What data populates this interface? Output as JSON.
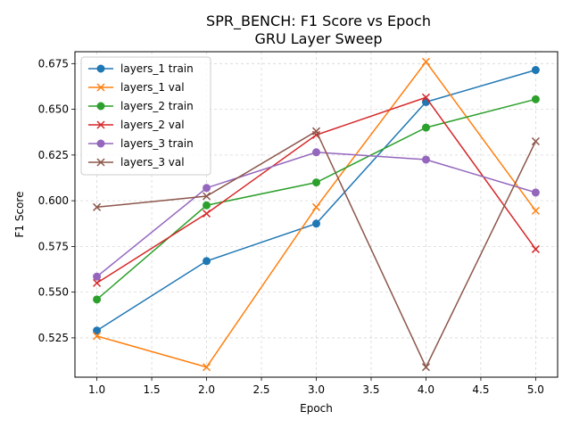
{
  "chart_data": {
    "type": "line",
    "title_line1": "SPR_BENCH: F1 Score vs Epoch",
    "title_line2": "GRU Layer Sweep",
    "xlabel": "Epoch",
    "ylabel": "F1 Score",
    "xlim": [
      0.8,
      5.2
    ],
    "ylim": [
      0.5035,
      0.6815
    ],
    "xticks": [
      1.0,
      1.5,
      2.0,
      2.5,
      3.0,
      3.5,
      4.0,
      4.5,
      5.0
    ],
    "xtick_labels": [
      "1.0",
      "1.5",
      "2.0",
      "2.5",
      "3.0",
      "3.5",
      "4.0",
      "4.5",
      "5.0"
    ],
    "yticks": [
      0.525,
      0.55,
      0.575,
      0.6,
      0.625,
      0.65,
      0.675
    ],
    "ytick_labels": [
      "0.525",
      "0.550",
      "0.575",
      "0.600",
      "0.625",
      "0.650",
      "0.675"
    ],
    "grid": true,
    "legend_position": "top-left",
    "x": [
      1,
      2,
      3,
      4,
      5
    ],
    "series": [
      {
        "name": "layers_1 train",
        "color": "#1f77b4",
        "marker": "circle",
        "values": [
          0.529,
          0.567,
          0.5875,
          0.654,
          0.6715
        ]
      },
      {
        "name": "layers_1 val",
        "color": "#ff7f0e",
        "marker": "x",
        "values": [
          0.526,
          0.509,
          0.5965,
          0.676,
          0.5945
        ]
      },
      {
        "name": "layers_2 train",
        "color": "#2ca02c",
        "marker": "circle",
        "values": [
          0.546,
          0.5975,
          0.61,
          0.64,
          0.6555
        ]
      },
      {
        "name": "layers_2 val",
        "color": "#d62728",
        "marker": "x",
        "values": [
          0.555,
          0.593,
          0.636,
          0.6565,
          0.5735
        ]
      },
      {
        "name": "layers_3 train",
        "color": "#9467bd",
        "marker": "circle",
        "values": [
          0.5585,
          0.607,
          0.6265,
          0.6225,
          0.6045
        ]
      },
      {
        "name": "layers_3 val",
        "color": "#8c564b",
        "marker": "x",
        "values": [
          0.5965,
          0.6025,
          0.638,
          0.509,
          0.6325
        ]
      }
    ]
  }
}
